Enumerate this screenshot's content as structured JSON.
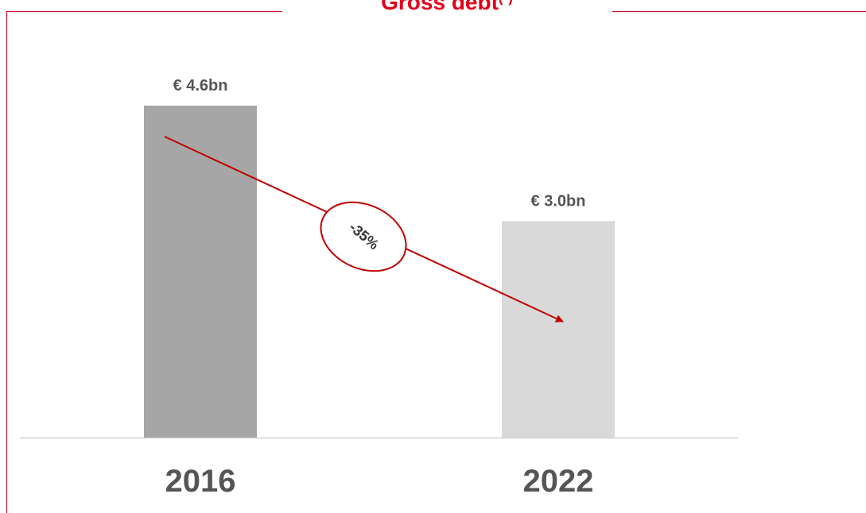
{
  "chart_data": {
    "type": "bar",
    "title": "Gross debt",
    "title_note": "(*)",
    "categories": [
      "2016",
      "2022"
    ],
    "values": [
      4.6,
      3.0
    ],
    "value_labels": [
      "€ 4.6bn",
      "€ 3.0bn"
    ],
    "colors": [
      "#a6a6a6",
      "#d9d9d9"
    ],
    "annotation": "-35%"
  }
}
